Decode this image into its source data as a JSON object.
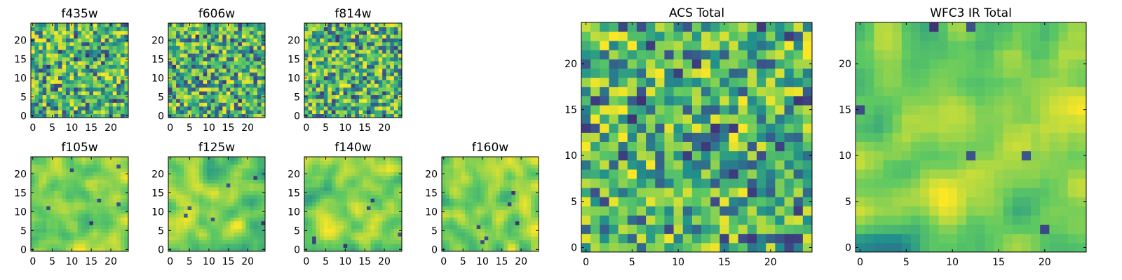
{
  "colormap": [
    "#440154",
    "#3b528b",
    "#21918c",
    "#5ec962",
    "#fde725"
  ],
  "chart_data": [
    {
      "type": "heatmap",
      "title": "f435w",
      "grid_size": 25,
      "xticks": [
        0,
        5,
        10,
        15,
        20
      ],
      "yticks": [
        0,
        5,
        10,
        15,
        20
      ],
      "xlim": [
        -0.5,
        24.5
      ],
      "ylim": [
        -0.5,
        24.5
      ],
      "grid": false,
      "pattern": "noise",
      "seed": 11
    },
    {
      "type": "heatmap",
      "title": "f606w",
      "grid_size": 25,
      "xticks": [
        0,
        5,
        10,
        15,
        20
      ],
      "yticks": [
        0,
        5,
        10,
        15,
        20
      ],
      "xlim": [
        -0.5,
        24.5
      ],
      "ylim": [
        -0.5,
        24.5
      ],
      "grid": false,
      "pattern": "noise",
      "seed": 23
    },
    {
      "type": "heatmap",
      "title": "f814w",
      "grid_size": 25,
      "xticks": [
        0,
        5,
        10,
        15,
        20
      ],
      "yticks": [
        0,
        5,
        10,
        15,
        20
      ],
      "xlim": [
        -0.5,
        24.5
      ],
      "ylim": [
        -0.5,
        24.5
      ],
      "grid": false,
      "pattern": "noise",
      "seed": 37
    },
    {
      "type": "heatmap",
      "title": "f105w",
      "grid_size": 25,
      "xticks": [
        0,
        5,
        10,
        15,
        20
      ],
      "yticks": [
        0,
        5,
        10,
        15,
        20
      ],
      "xlim": [
        -0.5,
        24.5
      ],
      "ylim": [
        -0.5,
        24.5
      ],
      "grid": false,
      "pattern": "smooth",
      "seed": 41
    },
    {
      "type": "heatmap",
      "title": "f125w",
      "grid_size": 25,
      "xticks": [
        0,
        5,
        10,
        15,
        20
      ],
      "yticks": [
        0,
        5,
        10,
        15,
        20
      ],
      "xlim": [
        -0.5,
        24.5
      ],
      "ylim": [
        -0.5,
        24.5
      ],
      "grid": false,
      "pattern": "smooth",
      "seed": 53
    },
    {
      "type": "heatmap",
      "title": "f140w",
      "grid_size": 25,
      "xticks": [
        0,
        5,
        10,
        15,
        20
      ],
      "yticks": [
        0,
        5,
        10,
        15,
        20
      ],
      "xlim": [
        -0.5,
        24.5
      ],
      "ylim": [
        -0.5,
        24.5
      ],
      "grid": false,
      "pattern": "smooth",
      "seed": 67
    },
    {
      "type": "heatmap",
      "title": "f160w",
      "grid_size": 25,
      "xticks": [
        0,
        5,
        10,
        15,
        20
      ],
      "yticks": [
        0,
        5,
        10,
        15,
        20
      ],
      "xlim": [
        -0.5,
        24.5
      ],
      "ylim": [
        -0.5,
        24.5
      ],
      "grid": false,
      "pattern": "smooth",
      "seed": 79
    },
    {
      "type": "heatmap",
      "title": "ACS Total",
      "grid_size": 25,
      "xticks": [
        0,
        5,
        10,
        15,
        20
      ],
      "yticks": [
        0,
        5,
        10,
        15,
        20
      ],
      "xlim": [
        -0.5,
        24.5
      ],
      "ylim": [
        -0.5,
        24.5
      ],
      "grid": false,
      "pattern": "noise",
      "seed": 83
    },
    {
      "type": "heatmap",
      "title": "WFC3 IR Total",
      "grid_size": 25,
      "xticks": [
        0,
        5,
        10,
        15,
        20
      ],
      "yticks": [
        0,
        5,
        10,
        15,
        20
      ],
      "xlim": [
        -0.5,
        24.5
      ],
      "ylim": [
        -0.5,
        24.5
      ],
      "grid": false,
      "pattern": "smooth",
      "seed": 97
    }
  ]
}
